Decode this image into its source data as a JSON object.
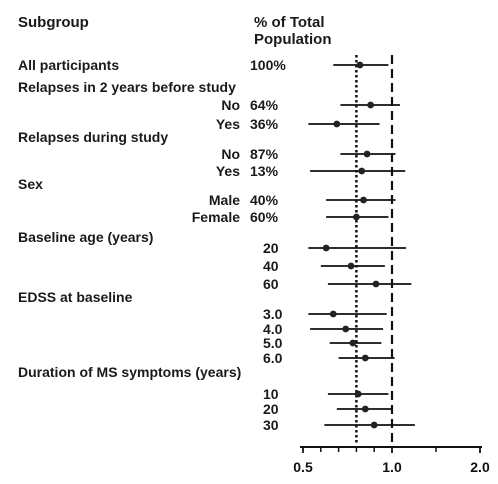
{
  "chart_data": {
    "type": "forest",
    "headers": {
      "subgroup": "Subgroup",
      "percent": "% of Total Population"
    },
    "x_axis": {
      "min": 0.5,
      "max": 2.0,
      "ticks": [
        "0.5",
        "1.0",
        "2.0"
      ]
    },
    "reference_lines": {
      "dashed": 1.0,
      "dotted": 0.8
    },
    "rows": [
      {
        "kind": "row",
        "label": "All participants",
        "percent": "100%",
        "estimate": 0.82,
        "lo": 0.67,
        "hi": 0.98
      },
      {
        "kind": "group",
        "label": "Relapses in 2 years before study"
      },
      {
        "kind": "row",
        "label": "No",
        "percent": "64%",
        "estimate": 0.88,
        "lo": 0.71,
        "hi": 1.09
      },
      {
        "kind": "row",
        "label": "Yes",
        "percent": "36%",
        "estimate": 0.69,
        "lo": 0.53,
        "hi": 0.93
      },
      {
        "kind": "group",
        "label": "Relapses during study"
      },
      {
        "kind": "row",
        "label": "No",
        "percent": "87%",
        "estimate": 0.86,
        "lo": 0.71,
        "hi": 1.04
      },
      {
        "kind": "row",
        "label": "Yes",
        "percent": "13%",
        "estimate": 0.83,
        "lo": 0.54,
        "hi": 1.15
      },
      {
        "kind": "group",
        "label": "Sex"
      },
      {
        "kind": "row",
        "label": "Male",
        "percent": "40%",
        "estimate": 0.84,
        "lo": 0.63,
        "hi": 1.04
      },
      {
        "kind": "row",
        "label": "Female",
        "percent": "60%",
        "estimate": 0.8,
        "lo": 0.63,
        "hi": 0.98
      },
      {
        "kind": "group",
        "label": "Baseline age (years)"
      },
      {
        "kind": "row",
        "label": "20",
        "percent": "",
        "estimate": 0.63,
        "lo": 0.53,
        "hi": 1.16
      },
      {
        "kind": "row",
        "label": "40",
        "percent": "",
        "estimate": 0.77,
        "lo": 0.6,
        "hi": 0.96
      },
      {
        "kind": "row",
        "label": "60",
        "percent": "",
        "estimate": 0.91,
        "lo": 0.64,
        "hi": 1.22
      },
      {
        "kind": "group",
        "label": "EDSS at baseline"
      },
      {
        "kind": "row",
        "label": "3.0",
        "percent": "",
        "estimate": 0.67,
        "lo": 0.53,
        "hi": 0.97
      },
      {
        "kind": "row",
        "label": "4.0",
        "percent": "",
        "estimate": 0.74,
        "lo": 0.54,
        "hi": 0.95
      },
      {
        "kind": "row",
        "label": "5.0",
        "percent": "",
        "estimate": 0.78,
        "lo": 0.65,
        "hi": 0.94
      },
      {
        "kind": "row",
        "label": "6.0",
        "percent": "",
        "estimate": 0.85,
        "lo": 0.7,
        "hi": 1.03
      },
      {
        "kind": "group",
        "label": "Duration of MS symptoms (years)"
      },
      {
        "kind": "row",
        "label": "10",
        "percent": "",
        "estimate": 0.81,
        "lo": 0.64,
        "hi": 0.98
      },
      {
        "kind": "row",
        "label": "20",
        "percent": "",
        "estimate": 0.85,
        "lo": 0.69,
        "hi": 1.0
      },
      {
        "kind": "row",
        "label": "30",
        "percent": "",
        "estimate": 0.9,
        "lo": 0.62,
        "hi": 1.26
      }
    ]
  }
}
